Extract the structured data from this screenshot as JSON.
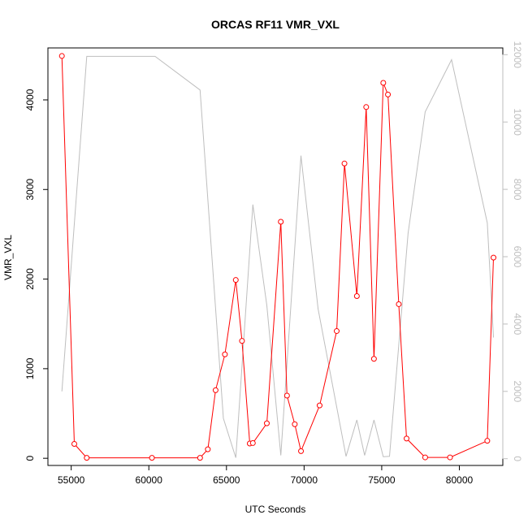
{
  "chart_data": {
    "type": "line",
    "title": "ORCAS RF11 VMR_VXL",
    "xlabel": "UTC Seconds",
    "ylabel": "VMR_VXL",
    "xlim": [
      53500,
      82800
    ],
    "ylim": [
      -80,
      4580
    ],
    "y2lim": [
      -200,
      12200
    ],
    "x_ticks": [
      55000,
      60000,
      65000,
      70000,
      75000,
      80000
    ],
    "y_ticks": [
      0,
      1000,
      2000,
      3000,
      4000
    ],
    "y2_ticks": [
      0,
      2000,
      4000,
      6000,
      8000,
      10000,
      12000
    ],
    "grid": false,
    "legend": "none",
    "colors": {
      "primary": "#ff0000",
      "secondary": "#bebebe",
      "axis": "#000000"
    },
    "series": [
      {
        "axis": "left",
        "style": "line-points",
        "color": "#ff0000",
        "x": [
          54400,
          55200,
          56000,
          60200,
          63300,
          63800,
          64300,
          64900,
          65600,
          66000,
          66500,
          66700,
          67600,
          68500,
          68900,
          69400,
          69800,
          71000,
          72100,
          72600,
          73400,
          74000,
          74500,
          75100,
          75400,
          76100,
          76600,
          77800,
          79400,
          81800,
          82200
        ],
        "y": [
          4490,
          160,
          5,
          5,
          5,
          100,
          760,
          1160,
          1990,
          1310,
          165,
          170,
          390,
          2640,
          700,
          380,
          80,
          590,
          1420,
          3290,
          1810,
          3920,
          1110,
          4190,
          4060,
          1720,
          220,
          10,
          10,
          195,
          2240
        ]
      },
      {
        "axis": "right",
        "style": "line",
        "color": "#bebebe",
        "x": [
          54400,
          56000,
          60400,
          63300,
          64800,
          65600,
          66700,
          67600,
          68500,
          69800,
          70900,
          72700,
          73400,
          73900,
          74500,
          75100,
          75500,
          76700,
          77800,
          79500,
          81800,
          82200
        ],
        "y": [
          2000,
          11950,
          11950,
          10950,
          1200,
          30,
          7550,
          4550,
          100,
          9000,
          4450,
          70,
          1150,
          100,
          1150,
          60,
          70,
          6700,
          10300,
          11850,
          7000,
          3600
        ]
      }
    ]
  }
}
